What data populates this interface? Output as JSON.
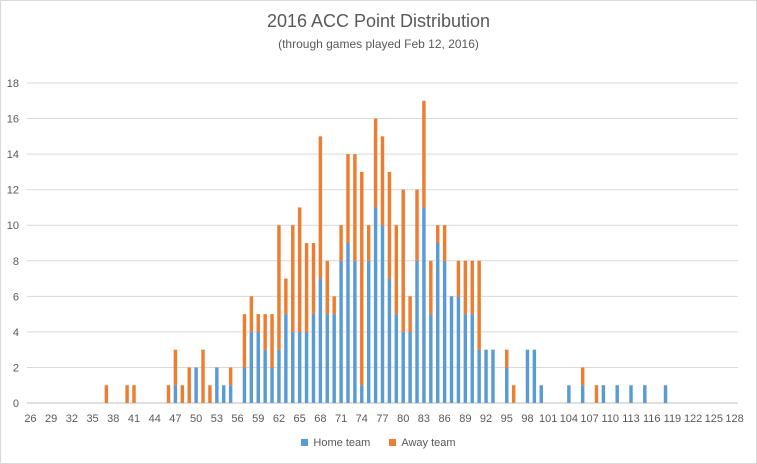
{
  "chart_data": {
    "type": "bar",
    "stacked": true,
    "title": "2016 ACC Point Distribution",
    "subtitle": "(through games played Feb 12, 2016)",
    "ylim": [
      0,
      18
    ],
    "y_ticks": [
      0,
      2,
      4,
      6,
      8,
      10,
      12,
      14,
      16,
      18
    ],
    "grid": true,
    "legend_position": "bottom",
    "x_tick_labels": [
      "26",
      "29",
      "32",
      "35",
      "38",
      "41",
      "44",
      "47",
      "50",
      "53",
      "56",
      "59",
      "62",
      "65",
      "68",
      "71",
      "74",
      "77",
      "80",
      "83",
      "86",
      "89",
      "92",
      "95",
      "98",
      "101",
      "104",
      "107",
      "110",
      "113",
      "116",
      "119",
      "122",
      "125",
      "128"
    ],
    "categories": [
      26,
      27,
      28,
      29,
      30,
      31,
      32,
      33,
      34,
      35,
      36,
      37,
      38,
      39,
      40,
      41,
      42,
      43,
      44,
      45,
      46,
      47,
      48,
      49,
      50,
      51,
      52,
      53,
      54,
      55,
      56,
      57,
      58,
      59,
      60,
      61,
      62,
      63,
      64,
      65,
      66,
      67,
      68,
      69,
      70,
      71,
      72,
      73,
      74,
      75,
      76,
      77,
      78,
      79,
      80,
      81,
      82,
      83,
      84,
      85,
      86,
      87,
      88,
      89,
      90,
      91,
      92,
      93,
      94,
      95,
      96,
      97,
      98,
      99,
      100,
      101,
      102,
      103,
      104,
      105,
      106,
      107,
      108,
      109,
      110,
      111,
      112,
      113,
      114,
      115,
      116,
      117,
      118,
      119,
      120,
      121,
      122,
      123,
      124,
      125,
      126,
      127,
      128
    ],
    "series": [
      {
        "name": "Home team",
        "color": "#5b9bd5",
        "values": [
          0,
          0,
          0,
          0,
          0,
          0,
          0,
          0,
          0,
          0,
          0,
          0,
          0,
          0,
          0,
          0,
          0,
          0,
          0,
          0,
          0,
          1,
          0,
          0,
          2,
          0,
          0,
          2,
          1,
          1,
          0,
          2,
          4,
          4,
          3,
          2,
          3,
          5,
          4,
          4,
          4,
          5,
          7,
          5,
          5,
          8,
          9,
          8,
          1,
          8,
          11,
          10,
          7,
          5,
          4,
          4,
          8,
          11,
          5,
          9,
          8,
          6,
          6,
          5,
          5,
          3,
          3,
          3,
          0,
          2,
          0,
          0,
          3,
          3,
          1,
          0,
          0,
          0,
          1,
          0,
          1,
          0,
          0,
          1,
          0,
          1,
          0,
          1,
          0,
          1,
          0,
          0,
          1,
          0,
          0,
          0,
          0,
          0,
          0,
          0,
          0,
          0,
          0
        ]
      },
      {
        "name": "Away team",
        "color": "#ed7d31",
        "values": [
          0,
          0,
          0,
          0,
          0,
          0,
          0,
          0,
          0,
          0,
          0,
          1,
          0,
          0,
          1,
          1,
          0,
          0,
          0,
          0,
          1,
          2,
          1,
          2,
          0,
          3,
          1,
          0,
          0,
          1,
          0,
          3,
          2,
          1,
          2,
          3,
          7,
          2,
          6,
          7,
          5,
          4,
          8,
          3,
          1,
          2,
          5,
          6,
          12,
          2,
          5,
          5,
          6,
          5,
          8,
          2,
          4,
          6,
          3,
          1,
          2,
          0,
          2,
          3,
          3,
          5,
          0,
          0,
          0,
          1,
          1,
          0,
          0,
          0,
          0,
          0,
          0,
          0,
          0,
          0,
          1,
          0,
          1,
          0,
          0,
          0,
          0,
          0,
          0,
          0,
          0,
          0,
          0,
          0,
          0,
          0,
          0,
          0,
          0,
          0,
          0,
          0,
          0
        ]
      }
    ]
  }
}
